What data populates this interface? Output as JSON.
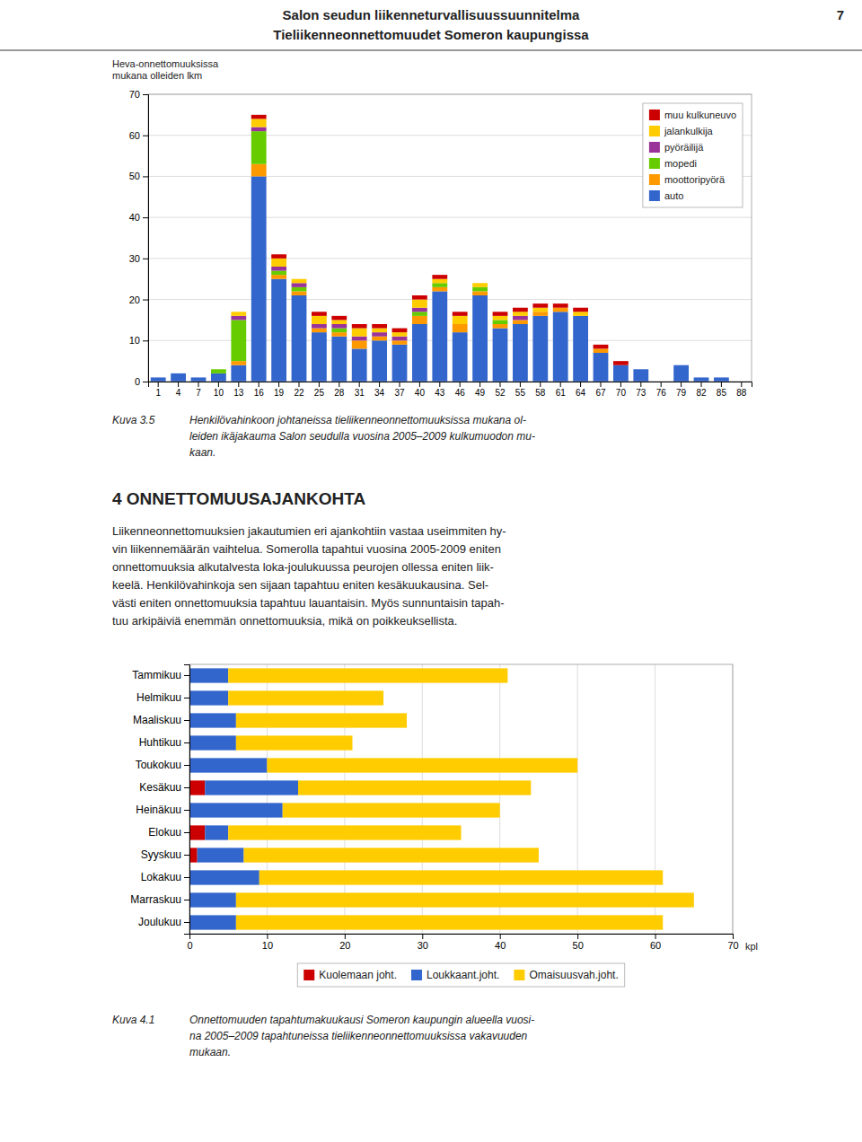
{
  "page_title_line1": "Salon seudun liikenneturvallisuussuunnitelma",
  "page_title_line2": "Tieliikenneonnettomuudet Someron kaupungissa",
  "page_number": "7",
  "caption1_label": "Kuva 3.5",
  "caption1_text": "Henkilövahinkoon johtaneissa tieliikenneonnettomuuksissa mukana ol-\nleiden ikäjakauma Salon seudulla vuosina 2005–2009 kulkumuodon mu-\nkaan.",
  "section_title": "4   ONNETTOMUUSAJANKOHTA",
  "section_text": "Liikenneonnettomuuksien jakautumien eri ajankohtiin vastaa useimmiten hy-\nvin liikennemäärän vaihtelua. Somerolla tapahtui vuosina 2005-2009 eniten\nonnettomuuksia alkutalvesta loka-joulukuussa peurojen ollessa eniten liik-\nkeelä. Henkilövahinkoja sen sijaan tapahtuu eniten kesäkuukausina. Sel-\nvästi eniten onnettomuuksia tapahtuu lauantaisin. Myös sunnuntaisin tapah-\ntuu arkipäiviä enemmän onnettomuuksia, mikä on poikkeuksellista.",
  "caption2_label": "Kuva 4.1",
  "caption2_text": "Onnettomuuden tapahtumakuukausi Someron kaupungin alueella vuosi-\nna 2005–2009 tapahtuneissa tieliikenneonnettomuuksissa vakavuuden\nmukaan.",
  "chart_data": [
    {
      "type": "bar",
      "stacked": true,
      "ylabel": "Heva-onnettomuuksissa\nmukana olleiden lkm",
      "categories": [
        1,
        4,
        7,
        10,
        13,
        16,
        19,
        22,
        25,
        28,
        31,
        34,
        37,
        40,
        43,
        46,
        49,
        52,
        55,
        58,
        61,
        64,
        67,
        70,
        73,
        76,
        79,
        82,
        85,
        88
      ],
      "ylim": [
        0,
        70
      ],
      "yticks": [
        0,
        10,
        20,
        30,
        40,
        50,
        60,
        70
      ],
      "grid": true,
      "legend": "upper right",
      "series": [
        {
          "name": "auto",
          "color": "#3366cc",
          "values": [
            1,
            2,
            1,
            2,
            4,
            50,
            25,
            21,
            12,
            11,
            8,
            10,
            9,
            14,
            22,
            12,
            21,
            13,
            14,
            16,
            17,
            16,
            7,
            4,
            3,
            0,
            4,
            1,
            1,
            0
          ]
        },
        {
          "name": "moottoripyörä",
          "color": "#ff9900",
          "values": [
            0,
            0,
            0,
            0,
            1,
            3,
            1,
            1,
            1,
            1,
            2,
            1,
            1,
            2,
            1,
            2,
            1,
            1,
            1,
            1,
            1,
            0,
            1,
            0,
            0,
            0,
            0,
            0,
            0,
            0
          ]
        },
        {
          "name": "mopedi",
          "color": "#66cc00",
          "values": [
            0,
            0,
            0,
            1,
            10,
            8,
            1,
            1,
            0,
            1,
            0,
            0,
            0,
            1,
            1,
            0,
            1,
            1,
            0,
            0,
            0,
            0,
            0,
            0,
            0,
            0,
            0,
            0,
            0,
            0
          ]
        },
        {
          "name": "pyöräilijä",
          "color": "#993399",
          "values": [
            0,
            0,
            0,
            0,
            1,
            1,
            1,
            1,
            1,
            1,
            1,
            1,
            1,
            1,
            0,
            0,
            0,
            0,
            1,
            0,
            0,
            0,
            0,
            0,
            0,
            0,
            0,
            0,
            0,
            0
          ]
        },
        {
          "name": "jalankulkija",
          "color": "#ffcc00",
          "values": [
            0,
            0,
            0,
            0,
            1,
            2,
            2,
            1,
            2,
            1,
            2,
            1,
            1,
            2,
            1,
            2,
            1,
            1,
            1,
            1,
            0,
            1,
            0,
            0,
            0,
            0,
            0,
            0,
            0,
            0
          ]
        },
        {
          "name": "muu kulkuneuvo",
          "color": "#cc0000",
          "values": [
            0,
            0,
            0,
            0,
            0,
            1,
            1,
            0,
            1,
            1,
            1,
            1,
            1,
            1,
            1,
            1,
            0,
            1,
            1,
            1,
            1,
            1,
            1,
            1,
            0,
            0,
            0,
            0,
            0,
            0
          ]
        }
      ]
    },
    {
      "type": "bar",
      "orientation": "horizontal",
      "stacked": true,
      "xlabel": "kpl",
      "categories": [
        "Tammikuu",
        "Helmikuu",
        "Maaliskuu",
        "Huhtikuu",
        "Toukokuu",
        "Kesäkuu",
        "Heinäkuu",
        "Elokuu",
        "Syyskuu",
        "Lokakuu",
        "Marraskuu",
        "Joulukuu"
      ],
      "xlim": [
        0,
        70
      ],
      "xticks": [
        0,
        10,
        20,
        30,
        40,
        50,
        60,
        70
      ],
      "grid": true,
      "legend": "bottom",
      "series": [
        {
          "name": "Kuolemaan joht.",
          "color": "#cc0000",
          "values": [
            0,
            0,
            0,
            0,
            0,
            2,
            0,
            2,
            1,
            0,
            0,
            0
          ]
        },
        {
          "name": "Loukkaant.joht.",
          "color": "#3366cc",
          "values": [
            5,
            5,
            6,
            6,
            10,
            12,
            12,
            3,
            6,
            9,
            6,
            6
          ]
        },
        {
          "name": "Omaisuusvah.joht.",
          "color": "#ffcc00",
          "values": [
            36,
            20,
            22,
            15,
            40,
            30,
            28,
            30,
            38,
            52,
            59,
            55
          ]
        }
      ]
    }
  ]
}
